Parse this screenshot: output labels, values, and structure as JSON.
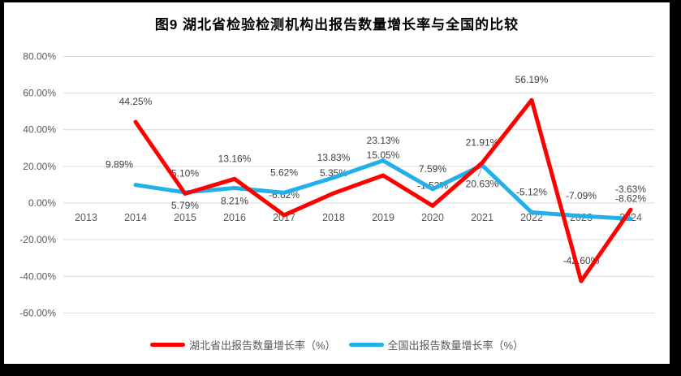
{
  "chart_data": {
    "type": "line",
    "title": "图9 湖北省检验检测机构出报告数量增长率与全国的比较",
    "x": [
      "2013",
      "2014",
      "2015",
      "2016",
      "2017",
      "2018",
      "2019",
      "2020",
      "2021",
      "2022",
      "2023",
      "2024"
    ],
    "series": [
      {
        "name": "湖北省出报告数量增长率（%）",
        "color": "#FF0000",
        "values": [
          null,
          44.25,
          5.1,
          13.16,
          -6.62,
          5.35,
          15.05,
          -1.52,
          21.91,
          56.19,
          -42.6,
          -3.63
        ]
      },
      {
        "name": "全国出报告数量增长率（%）",
        "color": "#23B0EA",
        "values": [
          null,
          9.89,
          5.79,
          8.21,
          5.62,
          13.83,
          23.13,
          7.59,
          20.63,
          -5.12,
          -7.09,
          -8.62
        ]
      }
    ],
    "ylim": [
      -60,
      80
    ],
    "ytick_step": 20,
    "ytick_labels": [
      "80.00%",
      "60.00%",
      "40.00%",
      "20.00%",
      "0.00%",
      "-20.00%",
      "-40.00%",
      "-60.00%"
    ],
    "value_suffix": "%",
    "value_decimals": 2,
    "grid": true,
    "legend_position": "bottom",
    "label_layout_hints": {
      "series2_labels_below_years": [
        "2015",
        "2016",
        "2021"
      ],
      "leader_line_years": [
        "2021"
      ],
      "series2_dx_overrides": {
        "2014": -20
      }
    }
  },
  "colors": {
    "grid": "#D9D9D9",
    "axis_text": "#595959",
    "data_label_text": "#404040",
    "leader_line": "#A6A6A6",
    "frame": "#000000",
    "background": "#FFFFFF"
  }
}
